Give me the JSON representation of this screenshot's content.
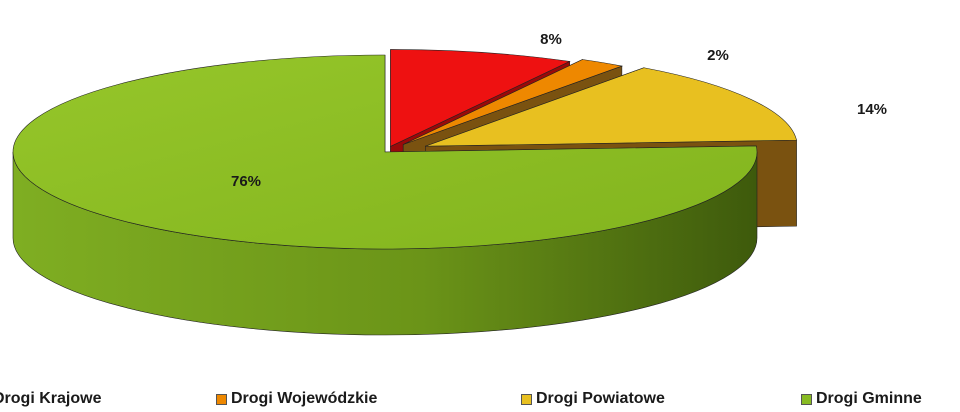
{
  "chart_data": {
    "type": "pie",
    "title": "",
    "categories": [
      "Drogi Krajowe",
      "Drogi Wojewódzkie",
      "Drogi Powiatowe",
      "Drogi Gminne"
    ],
    "values": [
      8,
      2,
      14,
      76
    ],
    "value_labels": [
      "8%",
      "2%",
      "14%",
      "76%"
    ],
    "colors": [
      "#ee1111",
      "#ee8800",
      "#e8c020",
      "#88bb22"
    ],
    "side_colors": [
      "#a00c0c",
      "#8a5a12",
      "#8a6418",
      "#587a14"
    ],
    "legend_position": "bottom",
    "exploded": true,
    "three_d": true
  },
  "legend": {
    "items": [
      {
        "label": "Drogi Krajowe",
        "color": "#ee1111"
      },
      {
        "label": "Drogi Wojewódzkie",
        "color": "#ee8800"
      },
      {
        "label": "Drogi Powiatowe",
        "color": "#e8c020"
      },
      {
        "label": "Drogi Gminne",
        "color": "#88bb22"
      }
    ]
  }
}
